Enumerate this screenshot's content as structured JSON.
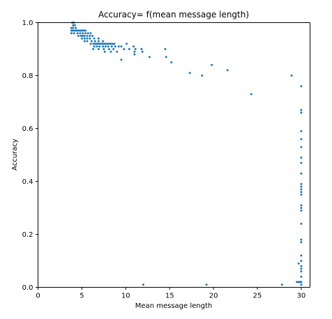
{
  "chart_data": {
    "type": "scatter",
    "title": "Accuracy= f(mean message length)",
    "xlabel": "Mean message length",
    "ylabel": "Accuracy",
    "xlim": [
      0,
      31
    ],
    "ylim": [
      0,
      1.0
    ],
    "xticks": [
      0,
      5,
      10,
      15,
      20,
      25,
      30
    ],
    "yticks": [
      0.0,
      0.2,
      0.4,
      0.6,
      0.8,
      1.0
    ],
    "xtick_labels": [
      "0",
      "5",
      "10",
      "15",
      "20",
      "25",
      "30"
    ],
    "ytick_labels": [
      "0.0",
      "0.2",
      "0.4",
      "0.6",
      "0.8",
      "1.0"
    ],
    "grid": false,
    "point_color": "#1f77b4",
    "points": [
      [
        3.9,
        1.0
      ],
      [
        4.1,
        1.0
      ],
      [
        4.0,
        0.99
      ],
      [
        4.2,
        0.99
      ],
      [
        4.0,
        0.98
      ],
      [
        4.3,
        0.98
      ],
      [
        3.8,
        0.98
      ],
      [
        3.8,
        0.97
      ],
      [
        4.0,
        0.97
      ],
      [
        4.2,
        0.97
      ],
      [
        4.4,
        0.97
      ],
      [
        4.6,
        0.97
      ],
      [
        4.8,
        0.97
      ],
      [
        5.0,
        0.97
      ],
      [
        5.2,
        0.97
      ],
      [
        5.4,
        0.97
      ],
      [
        3.8,
        0.96
      ],
      [
        4.1,
        0.96
      ],
      [
        4.5,
        0.96
      ],
      [
        4.8,
        0.96
      ],
      [
        5.1,
        0.96
      ],
      [
        5.4,
        0.96
      ],
      [
        5.7,
        0.96
      ],
      [
        6.0,
        0.96
      ],
      [
        4.6,
        0.95
      ],
      [
        4.9,
        0.95
      ],
      [
        5.1,
        0.95
      ],
      [
        5.3,
        0.95
      ],
      [
        5.6,
        0.95
      ],
      [
        5.9,
        0.95
      ],
      [
        6.2,
        0.95
      ],
      [
        5.0,
        0.94
      ],
      [
        5.3,
        0.94
      ],
      [
        5.6,
        0.94
      ],
      [
        5.9,
        0.94
      ],
      [
        6.4,
        0.94
      ],
      [
        6.9,
        0.94
      ],
      [
        5.3,
        0.93
      ],
      [
        5.6,
        0.93
      ],
      [
        6.1,
        0.93
      ],
      [
        6.5,
        0.93
      ],
      [
        6.9,
        0.93
      ],
      [
        7.4,
        0.93
      ],
      [
        6.0,
        0.92
      ],
      [
        6.3,
        0.92
      ],
      [
        6.5,
        0.92
      ],
      [
        6.7,
        0.92
      ],
      [
        6.9,
        0.92
      ],
      [
        7.1,
        0.92
      ],
      [
        7.3,
        0.92
      ],
      [
        7.5,
        0.92
      ],
      [
        7.7,
        0.92
      ],
      [
        7.9,
        0.92
      ],
      [
        8.1,
        0.92
      ],
      [
        8.3,
        0.92
      ],
      [
        8.5,
        0.92
      ],
      [
        8.7,
        0.92
      ],
      [
        10.1,
        0.92
      ],
      [
        6.4,
        0.91
      ],
      [
        6.7,
        0.91
      ],
      [
        7.0,
        0.91
      ],
      [
        7.4,
        0.91
      ],
      [
        7.7,
        0.91
      ],
      [
        8.0,
        0.91
      ],
      [
        8.4,
        0.91
      ],
      [
        8.8,
        0.91
      ],
      [
        9.2,
        0.91
      ],
      [
        9.5,
        0.91
      ],
      [
        10.9,
        0.91
      ],
      [
        6.3,
        0.9
      ],
      [
        6.9,
        0.9
      ],
      [
        7.5,
        0.9
      ],
      [
        8.1,
        0.9
      ],
      [
        8.6,
        0.9
      ],
      [
        9.8,
        0.9
      ],
      [
        10.4,
        0.9
      ],
      [
        11.1,
        0.9
      ],
      [
        11.8,
        0.9
      ],
      [
        14.5,
        0.9
      ],
      [
        7.6,
        0.89
      ],
      [
        8.3,
        0.89
      ],
      [
        9.0,
        0.89
      ],
      [
        11.0,
        0.89
      ],
      [
        11.9,
        0.89
      ],
      [
        11.0,
        0.88
      ],
      [
        14.6,
        0.87
      ],
      [
        12.7,
        0.87
      ],
      [
        9.5,
        0.86
      ],
      [
        15.2,
        0.85
      ],
      [
        19.8,
        0.84
      ],
      [
        21.6,
        0.82
      ],
      [
        17.3,
        0.81
      ],
      [
        18.7,
        0.8
      ],
      [
        28.9,
        0.8
      ],
      [
        24.3,
        0.73
      ],
      [
        30.0,
        0.76
      ],
      [
        30.0,
        0.67
      ],
      [
        30.0,
        0.66
      ],
      [
        30.0,
        0.59
      ],
      [
        30.0,
        0.56
      ],
      [
        30.0,
        0.53
      ],
      [
        30.0,
        0.49
      ],
      [
        30.0,
        0.47
      ],
      [
        30.0,
        0.43
      ],
      [
        30.0,
        0.39
      ],
      [
        30.0,
        0.38
      ],
      [
        30.0,
        0.37
      ],
      [
        30.0,
        0.36
      ],
      [
        30.0,
        0.35
      ],
      [
        30.0,
        0.31
      ],
      [
        30.0,
        0.3
      ],
      [
        30.0,
        0.29
      ],
      [
        30.0,
        0.24
      ],
      [
        30.0,
        0.18
      ],
      [
        30.0,
        0.17
      ],
      [
        30.0,
        0.12
      ],
      [
        30.0,
        0.1
      ],
      [
        30.0,
        0.08
      ],
      [
        30.0,
        0.07
      ],
      [
        30.0,
        0.06
      ],
      [
        30.0,
        0.04
      ],
      [
        30.0,
        0.02
      ],
      [
        30.0,
        0.01
      ],
      [
        29.7,
        0.09
      ],
      [
        29.5,
        0.02
      ],
      [
        29.7,
        0.02
      ],
      [
        29.9,
        0.02
      ],
      [
        12.0,
        0.01
      ],
      [
        19.2,
        0.01
      ],
      [
        27.8,
        0.01
      ]
    ]
  }
}
